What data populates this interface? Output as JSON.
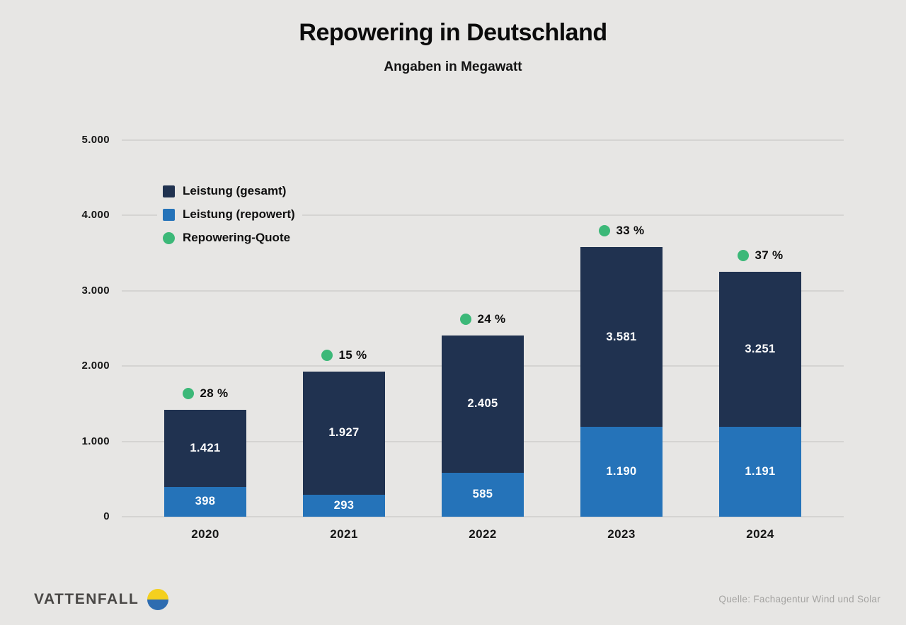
{
  "title": "Repowering in Deutschland",
  "subtitle": "Angaben in Megawatt",
  "source_note": "Quelle: Fachagentur Wind und Solar",
  "brand": {
    "name": "VATTENFALL"
  },
  "colors": {
    "background": "#e7e6e4",
    "gridline": "#d5d4d2",
    "gesamt": "#203250",
    "repowert": "#2573b9",
    "quote": "#3cb878",
    "logo_yellow": "#f4d01e",
    "logo_blue": "#2e6cb0"
  },
  "legend": {
    "items": [
      {
        "label": "Leistung (gesamt)",
        "color": "#203250",
        "shape": "square"
      },
      {
        "label": "Leistung (repowert)",
        "color": "#2573b9",
        "shape": "square"
      },
      {
        "label": "Repowering-Quote",
        "color": "#3cb878",
        "shape": "circle"
      }
    ]
  },
  "chart_data": {
    "type": "bar",
    "stacked": true,
    "title": "Repowering in Deutschland",
    "subtitle": "Angaben in Megawatt",
    "unit": "Megawatt",
    "categories": [
      "2020",
      "2021",
      "2022",
      "2023",
      "2024"
    ],
    "series": [
      {
        "name": "Leistung (gesamt)",
        "role": "total-bar",
        "color": "#203250",
        "values": [
          1421,
          1927,
          2405,
          3581,
          3251
        ],
        "labels": [
          "1.421",
          "1.927",
          "2.405",
          "3.581",
          "3.251"
        ]
      },
      {
        "name": "Leistung (repowert)",
        "role": "lower-segment",
        "color": "#2573b9",
        "values": [
          398,
          293,
          585,
          1190,
          1191
        ],
        "labels": [
          "398",
          "293",
          "585",
          "1.190",
          "1.191"
        ]
      },
      {
        "name": "Repowering-Quote",
        "role": "point-label",
        "color": "#3cb878",
        "values": [
          28,
          15,
          24,
          33,
          37
        ],
        "labels": [
          "28 %",
          "15 %",
          "24 %",
          "33 %",
          "37 %"
        ]
      }
    ],
    "ylim": [
      0,
      5000
    ],
    "yticks": [
      {
        "value": 0,
        "label": "0"
      },
      {
        "value": 1000,
        "label": "1.000"
      },
      {
        "value": 2000,
        "label": "2.000"
      },
      {
        "value": 3000,
        "label": "3.000"
      },
      {
        "value": 4000,
        "label": "4.000"
      },
      {
        "value": 5000,
        "label": "5.000"
      }
    ],
    "grid": true,
    "legend_position": "upper-left-inside"
  }
}
